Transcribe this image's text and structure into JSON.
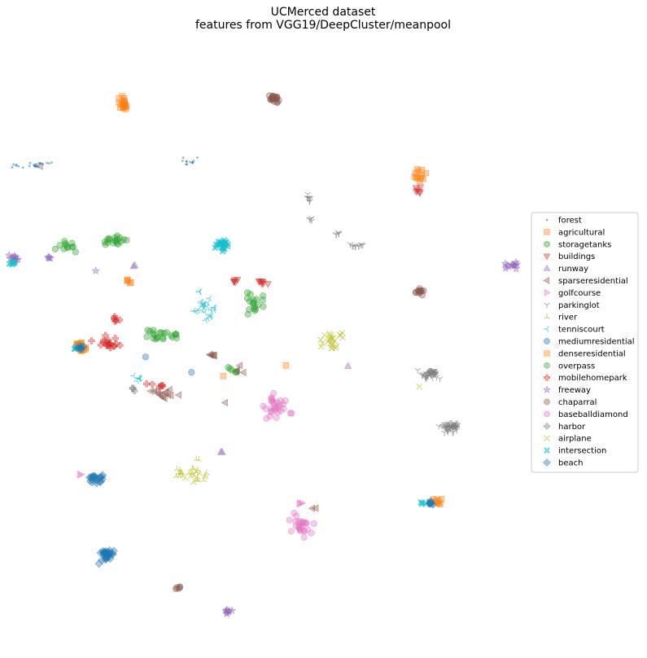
{
  "chart_data": {
    "type": "scatter",
    "title": "UCMerced dataset",
    "subtitle": "features from VGG19/DeepCluster/meanpool",
    "xlabel": "",
    "ylabel": "",
    "grid": false,
    "axes_visible": false,
    "xlim": [
      0,
      100
    ],
    "ylim": [
      0,
      100
    ],
    "legend_position": "right",
    "series": [
      {
        "name": "forest",
        "marker": "point",
        "color": "#1f77b4",
        "clusters": [
          [
            5,
            78.6,
            4.5,
            0.8,
            24
          ],
          [
            29,
            79.2,
            2.6,
            1.0,
            12
          ]
        ]
      },
      {
        "name": "agricultural",
        "marker": "square",
        "color": "#ff7f0e",
        "clusters": [
          [
            19,
            88.5,
            1.1,
            1.4,
            18
          ],
          [
            64.8,
            76.8,
            1.2,
            1.4,
            12
          ],
          [
            19.8,
            59.6,
            1.0,
            0.5,
            5
          ],
          [
            12.5,
            48.8,
            1.8,
            0.8,
            8
          ],
          [
            67,
            24.4,
            1.6,
            1.0,
            10
          ]
        ]
      },
      {
        "name": "storagetanks",
        "marker": "circle",
        "color": "#2ca02c",
        "clusters": [
          [
            17.5,
            66.5,
            2.8,
            0.9,
            18
          ],
          [
            10,
            65.6,
            2.2,
            1.0,
            12
          ],
          [
            40,
            56.5,
            2.2,
            3.0,
            18
          ],
          [
            24.5,
            51,
            3.0,
            1.2,
            16
          ],
          [
            35.5,
            45.8,
            0.6,
            0.6,
            3
          ]
        ]
      },
      {
        "name": "buildings",
        "marker": "triangle-down",
        "color": "#d62728",
        "clusters": [
          [
            40.5,
            59.6,
            1.2,
            0.6,
            7
          ],
          [
            36.5,
            60,
            0.9,
            0.5,
            5
          ],
          [
            64.5,
            74.8,
            0.8,
            1.0,
            6
          ]
        ]
      },
      {
        "name": "runway",
        "marker": "triangle-up",
        "color": "#9467bd",
        "clusters": [
          [
            20.5,
            62.3,
            0.7,
            0.4,
            2
          ],
          [
            34.3,
            32.2,
            0.4,
            0.4,
            2
          ],
          [
            53.8,
            46.1,
            0.3,
            0.3,
            1
          ]
        ]
      },
      {
        "name": "sparseresidential",
        "marker": "triangle-left",
        "color": "#8c564b",
        "clusters": [
          [
            32.5,
            47.9,
            1.2,
            0.3,
            6
          ],
          [
            25.5,
            41.5,
            2.5,
            1.2,
            14
          ],
          [
            36.8,
            45.2,
            0.9,
            0.8,
            5
          ],
          [
            34.8,
            40.2,
            0.3,
            0.3,
            1
          ],
          [
            6.2,
            78.4,
            0.3,
            0.3,
            1
          ],
          [
            48.5,
            23.2,
            0.6,
            0.3,
            2
          ]
        ]
      },
      {
        "name": "golfcourse",
        "marker": "triangle-right",
        "color": "#e377c2",
        "clusters": [
          [
            12.5,
            28.5,
            0.6,
            0.3,
            2
          ],
          [
            46.5,
            23.8,
            0.8,
            0.4,
            3
          ]
        ]
      },
      {
        "name": "parkinglot",
        "marker": "tri-down",
        "color": "#7f7f7f",
        "clusters": [
          [
            47.8,
            73.4,
            0.6,
            1.0,
            8
          ],
          [
            48.3,
            69.9,
            0.7,
            0.3,
            4
          ],
          [
            52.2,
            67.6,
            0.6,
            0.4,
            5
          ],
          [
            55.2,
            65.6,
            1.4,
            0.5,
            10
          ],
          [
            66,
            44.6,
            1.8,
            1.2,
            22
          ],
          [
            69.3,
            36.1,
            2.0,
            0.8,
            22
          ]
        ]
      },
      {
        "name": "river",
        "marker": "tri-up",
        "color": "#bcbd22",
        "clusters": [
          [
            29.5,
            28.5,
            3.2,
            1.8,
            30
          ],
          [
            30.5,
            31.2,
            0.5,
            0.3,
            2
          ]
        ]
      },
      {
        "name": "tenniscourt",
        "marker": "tri-left",
        "color": "#17becf",
        "clusters": [
          [
            32,
            56,
            2.5,
            2.5,
            26
          ],
          [
            21,
            44.2,
            1.0,
            0.6,
            6
          ]
        ]
      },
      {
        "name": "mediumresidential",
        "marker": "circle",
        "color": "#1f77b4",
        "clusters": [
          [
            22.5,
            47.6,
            0.3,
            0.3,
            1
          ],
          [
            29.6,
            45.1,
            0.1,
            0.1,
            1
          ]
        ]
      },
      {
        "name": "denseresidential",
        "marker": "square",
        "color": "#ff7f0e",
        "clusters": [
          [
            44.2,
            46.2,
            0.3,
            0.3,
            1
          ],
          [
            34.5,
            44.5,
            0.3,
            0.3,
            1
          ],
          [
            12.3,
            49.6,
            1.2,
            0.7,
            10
          ]
        ]
      },
      {
        "name": "overpass",
        "marker": "hexagon",
        "color": "#2ca02c",
        "clusters": [
          [
            26.5,
            51.2,
            1.2,
            0.8,
            6
          ],
          [
            36.3,
            45.2,
            0.4,
            0.4,
            2
          ]
        ]
      },
      {
        "name": "mobilehomepark",
        "marker": "plus",
        "color": "#d62728",
        "clusters": [
          [
            16.5,
            50.1,
            2.2,
            1.4,
            20
          ],
          [
            17.8,
            53.8,
            0.7,
            0.8,
            6
          ],
          [
            24.5,
            43,
            2.0,
            0.4,
            6
          ]
        ]
      },
      {
        "name": "freeway",
        "marker": "star",
        "color": "#9467bd",
        "clusters": [
          [
            2.2,
            63.5,
            1.0,
            0.6,
            10
          ],
          [
            7.5,
            63.8,
            0.6,
            0.5,
            4
          ],
          [
            79.2,
            62.4,
            1.4,
            0.8,
            12
          ],
          [
            86,
            49.3,
            0.5,
            0.3,
            3
          ],
          [
            35.2,
            6.6,
            0.8,
            0.7,
            8
          ],
          [
            14.8,
            61.5,
            0.3,
            0.3,
            1
          ]
        ]
      },
      {
        "name": "chaparral",
        "marker": "circle",
        "color": "#8c564b",
        "clusters": [
          [
            42.6,
            89.2,
            1.4,
            0.9,
            20
          ],
          [
            64.8,
            58.1,
            0.9,
            0.6,
            12
          ],
          [
            27.6,
            10.3,
            0.4,
            0.3,
            5
          ]
        ]
      },
      {
        "name": "baseballdiamond",
        "marker": "circle",
        "color": "#e377c2",
        "clusters": [
          [
            42.5,
            39.5,
            3.0,
            2.0,
            30
          ],
          [
            46.5,
            20.3,
            2.5,
            2.0,
            26
          ]
        ]
      },
      {
        "name": "harbor",
        "marker": "plus",
        "color": "#7f7f7f",
        "clusters": [
          [
            70,
            36.4,
            1.5,
            0.5,
            10
          ],
          [
            66.8,
            45.2,
            1.2,
            0.6,
            8
          ],
          [
            20.5,
            42.5,
            0.5,
            0.5,
            3
          ]
        ]
      },
      {
        "name": "airplane",
        "marker": "x",
        "color": "#bcbd22",
        "clusters": [
          [
            51.5,
            50,
            3.0,
            1.5,
            24
          ],
          [
            64.8,
            42.8,
            0.3,
            0.3,
            1
          ]
        ]
      },
      {
        "name": "intersection",
        "marker": "x-filled",
        "color": "#17becf",
        "clusters": [
          [
            34.3,
            65.6,
            1.8,
            1.4,
            26
          ],
          [
            2,
            62.8,
            1.0,
            0.6,
            8
          ],
          [
            12,
            49,
            0.8,
            0.5,
            4
          ],
          [
            65.8,
            24.1,
            1.0,
            0.5,
            6
          ]
        ]
      },
      {
        "name": "beach",
        "marker": "diamond",
        "color": "#1f77b4",
        "clusters": [
          [
            15,
            27.9,
            1.5,
            0.8,
            20
          ],
          [
            16.5,
            15.6,
            1.8,
            1.6,
            30
          ],
          [
            12.5,
            48.9,
            0.8,
            0.5,
            6
          ],
          [
            66.5,
            24,
            0.6,
            0.4,
            5
          ]
        ]
      }
    ]
  }
}
